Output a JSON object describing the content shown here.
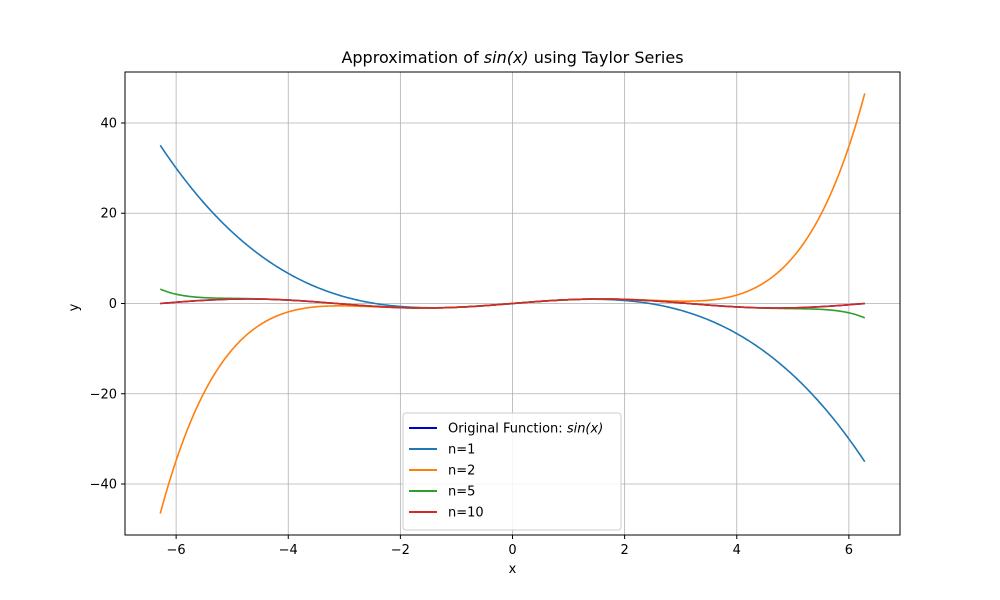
{
  "chart_data": {
    "type": "line",
    "title": {
      "prefix": "Approximation of ",
      "math": "sin(x)",
      "suffix": " using Taylor Series"
    },
    "xlabel": "x",
    "ylabel": "y",
    "xlim": [
      -6.912,
      6.912
    ],
    "ylim": [
      -51.3,
      51.3
    ],
    "xticks": [
      -6,
      -4,
      -2,
      0,
      2,
      4,
      6
    ],
    "yticks": [
      -40,
      -20,
      0,
      20,
      40
    ],
    "xtick_labels": [
      "−6",
      "−4",
      "−2",
      "0",
      "2",
      "4",
      "6"
    ],
    "ytick_labels": [
      "−40",
      "−20",
      "0",
      "20",
      "40"
    ],
    "grid": true,
    "legend_position": "lower center",
    "x_range": [
      -6.2832,
      6.2832
    ],
    "series": [
      {
        "name": "Original Function: ",
        "name_math": "sin(x)",
        "color": "#0000cd",
        "function": "sin(x)",
        "samples": [
          [
            -6.28,
            0.0
          ],
          [
            -4.71,
            1.0
          ],
          [
            -3.14,
            0.0
          ],
          [
            -1.57,
            -1.0
          ],
          [
            0,
            0.0
          ],
          [
            1.57,
            1.0
          ],
          [
            3.14,
            0.0
          ],
          [
            4.71,
            -1.0
          ],
          [
            6.28,
            0.0
          ]
        ]
      },
      {
        "name": "n=1",
        "color": "#1f77b4",
        "terms": 2,
        "samples": [
          [
            -6.28,
            35.06
          ],
          [
            -4.0,
            6.67
          ],
          [
            -2.0,
            -0.67
          ],
          [
            0,
            0.0
          ],
          [
            2.0,
            0.67
          ],
          [
            4.0,
            -6.67
          ],
          [
            6.28,
            -35.06
          ]
        ]
      },
      {
        "name": "n=2",
        "color": "#ff7f0e",
        "terms": 3,
        "samples": [
          [
            -6.28,
            -46.7
          ],
          [
            -4.0,
            -1.87
          ],
          [
            -2.0,
            -0.93
          ],
          [
            0,
            0.0
          ],
          [
            2.0,
            0.93
          ],
          [
            4.0,
            1.87
          ],
          [
            6.28,
            46.7
          ]
        ]
      },
      {
        "name": "n=5",
        "color": "#2ca02c",
        "terms": 6,
        "samples": [
          [
            -6.28,
            3.2
          ],
          [
            -4.0,
            0.76
          ],
          [
            0,
            0.0
          ],
          [
            4.0,
            -0.76
          ],
          [
            6.28,
            -3.2
          ]
        ]
      },
      {
        "name": "n=10",
        "color": "#d62728",
        "terms": 11,
        "samples": [
          [
            -6.28,
            0.0
          ],
          [
            -4.71,
            1.0
          ],
          [
            -1.57,
            -1.0
          ],
          [
            0,
            0.0
          ],
          [
            1.57,
            1.0
          ],
          [
            4.71,
            -1.0
          ],
          [
            6.28,
            0.0
          ]
        ]
      }
    ]
  }
}
